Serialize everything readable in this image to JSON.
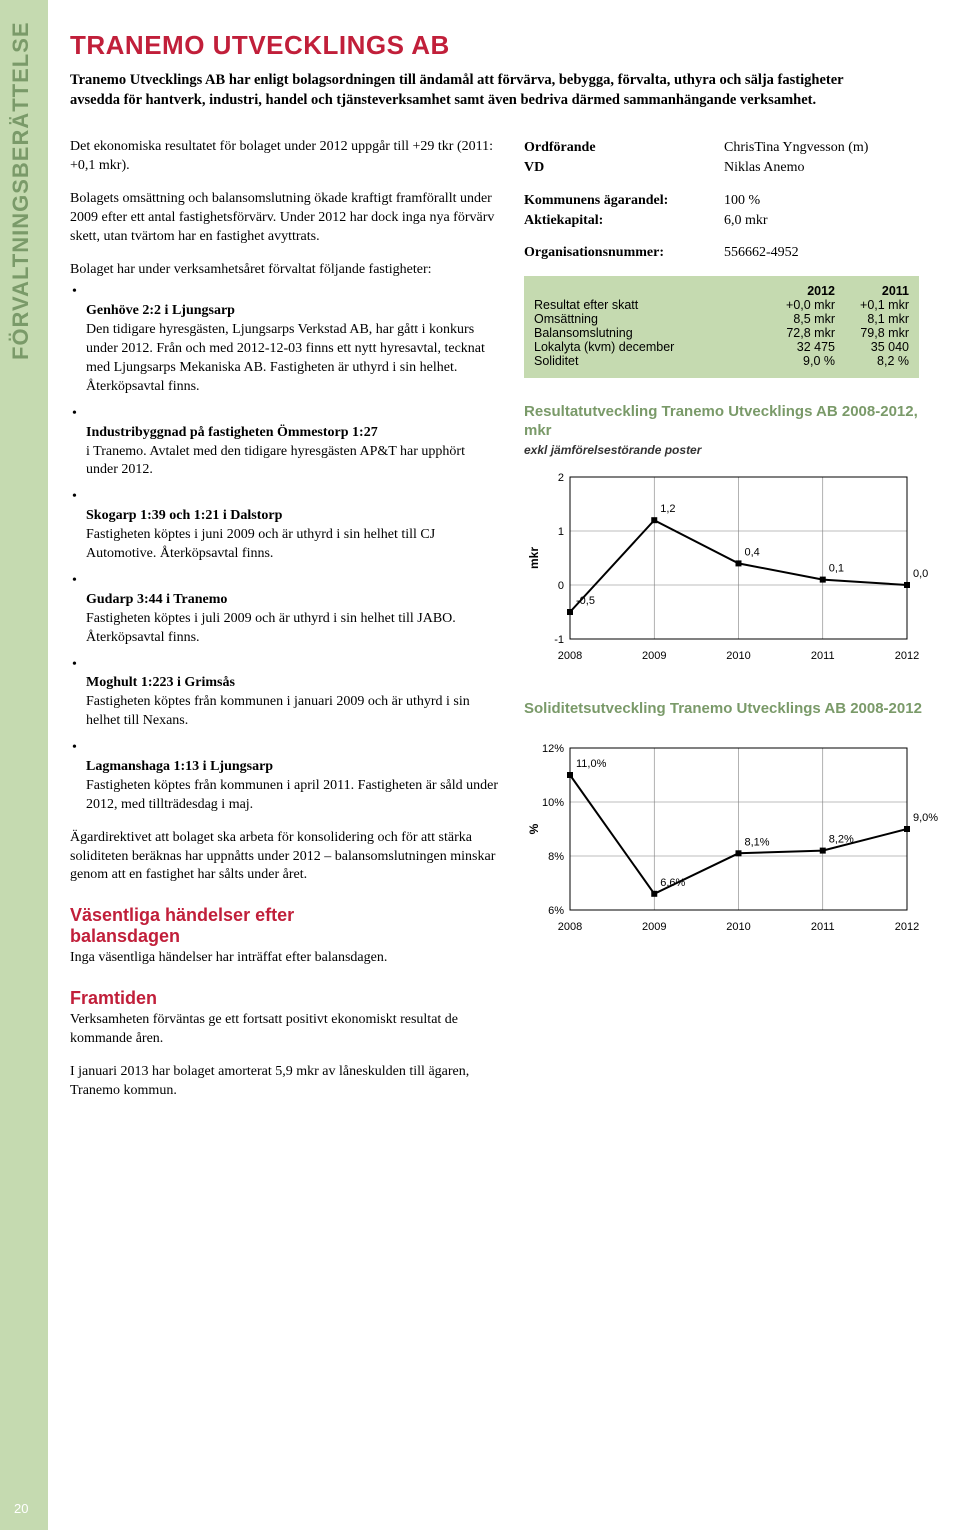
{
  "sidebar_label": "FÖRVALTNINGSBERÄTTELSE",
  "page_number": "20",
  "title": "TRANEMO UTVECKLINGS AB",
  "lead": "Tranemo Utvecklings AB har enligt bolagsordningen till ändamål att förvärva, bebygga, förvalta, uthyra och sälja fastigheter avsedda för hantverk, industri, handel och tjänsteverksamhet samt även bedriva därmed sammanhängande verksamhet.",
  "left": {
    "p1": "Det ekonomiska resultatet för bolaget under 2012 uppgår till +29 tkr (2011: +0,1 mkr).",
    "p2": "Bolagets omsättning och balansomslutning ökade kraftigt framförallt under 2009 efter ett antal fastighetsförvärv. Under 2012 har dock inga nya förvärv skett, utan tvärtom har en fastighet avyttrats.",
    "p3_intro": "Bolaget har under verksamhetsåret förvaltat följande fastigheter:",
    "items": [
      {
        "t": "Genhöve 2:2 i Ljungsarp",
        "d": "Den tidigare hyresgästen, Ljungsarps Verkstad AB, har gått i konkurs under 2012. Från och med 2012-12-03 finns ett nytt hyresavtal, tecknat med Ljungsarps Mekaniska AB. Fastigheten är uthyrd i sin helhet. Återköpsavtal finns."
      },
      {
        "t": "Industribyggnad på fastigheten Ömmestorp 1:27",
        "d": "i Tranemo. Avtalet med den tidigare hyresgästen AP&T har upphört under 2012."
      },
      {
        "t": "Skogarp 1:39 och 1:21 i Dalstorp",
        "d": "Fastigheten köptes i juni 2009 och är uthyrd i sin helhet till CJ Automotive. Återköpsavtal finns."
      },
      {
        "t": "Gudarp 3:44 i Tranemo",
        "d": "Fastigheten köptes i juli 2009 och är uthyrd i sin helhet till JABO. Återköpsavtal finns."
      },
      {
        "t": "Moghult 1:223 i Grimsås",
        "d": "Fastigheten köptes från kommunen i januari 2009 och är uthyrd i sin helhet till Nexans."
      },
      {
        "t": "Lagmanshaga 1:13 i Ljungsarp",
        "d": "Fastigheten köptes från kommunen i april 2011. Fastigheten är såld under 2012, med tillträdesdag i maj."
      }
    ],
    "p4": "Ägardirektivet att bolaget ska arbeta för konsolidering och för att stärka soliditeten beräknas har uppnåtts under 2012 – balansomslutningen minskar genom att en fastighet har sålts under året.",
    "h_vasent": "Väsentliga händelser efter",
    "h_vasent2": "balansdagen",
    "p5": "Inga väsentliga händelser har inträffat efter balansdagen.",
    "h_framtid": "Framtiden",
    "p6": "Verksamheten förväntas ge ett fortsatt positivt ekonomiskt resultat de kommande åren.",
    "p7": "I januari 2013 har bolaget amorterat 5,9 mkr av låneskulden till ägaren, Tranemo kommun."
  },
  "right": {
    "kv": [
      {
        "k": "Ordförande",
        "v": "ChrisTina Yngvesson (m)"
      },
      {
        "k": "VD",
        "v": "Niklas Anemo"
      }
    ],
    "kv2": [
      {
        "k": "Kommunens ägarandel:",
        "v": "100 %"
      },
      {
        "k": "Aktiekapital:",
        "v": "6,0 mkr"
      }
    ],
    "orgnr_k": "Organisationsnummer:",
    "orgnr_v": "556662-4952",
    "table": {
      "cols": [
        "",
        "2012",
        "2011"
      ],
      "rows": [
        [
          "Resultat efter skatt",
          "+0,0 mkr",
          "+0,1 mkr"
        ],
        [
          "Omsättning",
          "8,5 mkr",
          "8,1 mkr"
        ],
        [
          "Balansomslutning",
          "72,8 mkr",
          "79,8 mkr"
        ],
        [
          "Lokalyta (kvm) december",
          "32 475",
          "35 040"
        ],
        [
          "Soliditet",
          "9,0 %",
          "8,2 %"
        ]
      ]
    },
    "chart1": {
      "title": "Resultatutveckling Tranemo Utvecklings AB 2008-2012, mkr",
      "sub": "exkl jämförelsestörande poster",
      "type": "line",
      "ylabel": "mkr",
      "yticks": [
        -1,
        0,
        1,
        2
      ],
      "xticks": [
        "2008",
        "2009",
        "2010",
        "2011",
        "2012"
      ],
      "points": [
        {
          "x": "2008",
          "y": -0.5,
          "label": "-0,5"
        },
        {
          "x": "2009",
          "y": 1.2,
          "label": "1,2"
        },
        {
          "x": "2010",
          "y": 0.4,
          "label": "0,4"
        },
        {
          "x": "2011",
          "y": 0.1,
          "label": "0,1"
        },
        {
          "x": "2012",
          "y": 0.0,
          "label": "0,0"
        }
      ],
      "line_color": "#000000",
      "bg": "#ffffff",
      "grid_color": "#7f7f7f",
      "font_size": 11
    },
    "chart2": {
      "title": "Soliditetsutveckling Tranemo Utvecklings AB 2008-2012",
      "type": "line",
      "ylabel": "%",
      "yticks": [
        6,
        8,
        10,
        12
      ],
      "ytick_labels": [
        "6%",
        "8%",
        "10%",
        "12%"
      ],
      "xticks": [
        "2008",
        "2009",
        "2010",
        "2011",
        "2012"
      ],
      "points": [
        {
          "x": "2008",
          "y": 11.0,
          "label": "11,0%"
        },
        {
          "x": "2009",
          "y": 6.6,
          "label": "6,6%"
        },
        {
          "x": "2010",
          "y": 8.1,
          "label": "8,1%"
        },
        {
          "x": "2011",
          "y": 8.2,
          "label": "8,2%"
        },
        {
          "x": "2012",
          "y": 9.0,
          "label": "9,0%"
        }
      ],
      "line_color": "#000000",
      "bg": "#ffffff",
      "grid_color": "#7f7f7f",
      "font_size": 11
    }
  }
}
